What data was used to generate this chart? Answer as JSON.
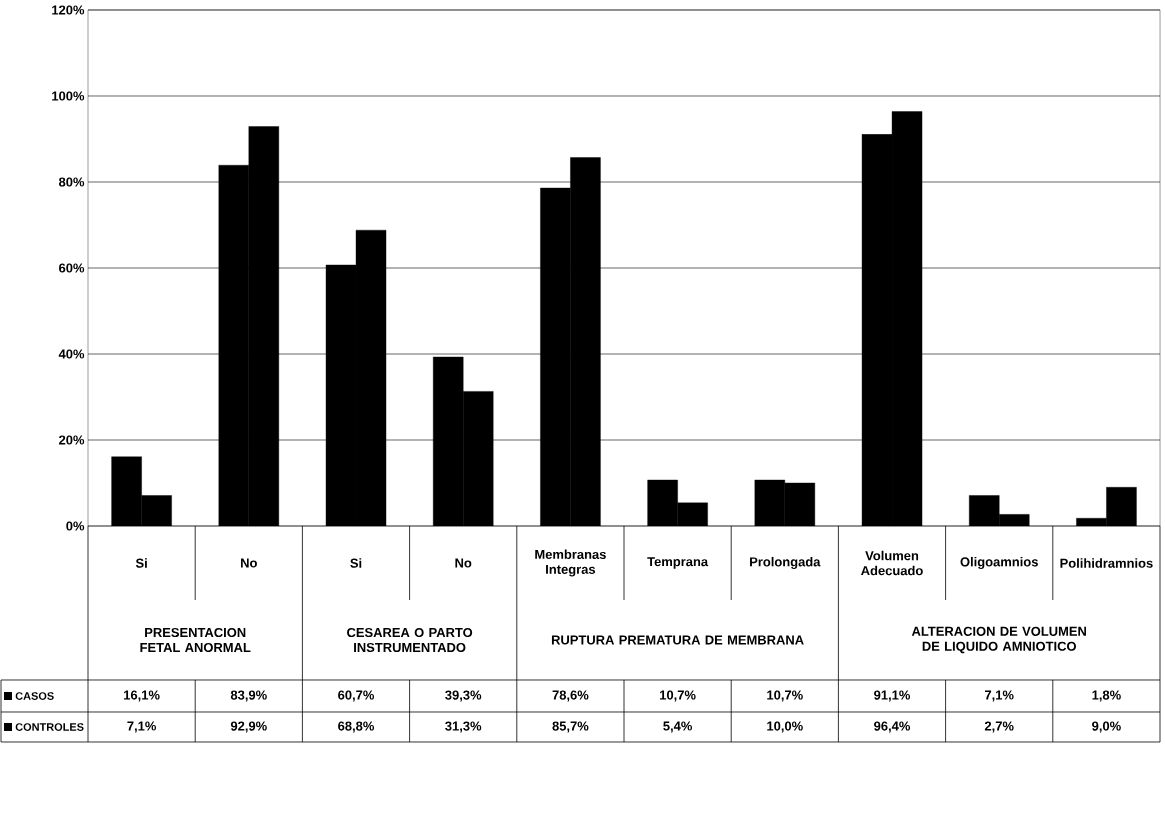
{
  "chart_data": {
    "type": "bar",
    "categories": [
      "Si",
      "No",
      "Si",
      "No",
      "Membranas Integras",
      "Temprana",
      "Prolongada",
      "Volumen Adecuado",
      "Oligoamnios",
      "Polihidramnios"
    ],
    "series": [
      {
        "name": "CASOS",
        "color": "#000000",
        "values": [
          16.1,
          83.9,
          60.7,
          39.3,
          78.6,
          10.7,
          10.7,
          91.1,
          7.1,
          1.8
        ],
        "value_labels": [
          "16,1%",
          "83,9%",
          "60,7%",
          "39,3%",
          "78,6%",
          "10,7%",
          "10,7%",
          "91,1%",
          "7,1%",
          "1,8%"
        ]
      },
      {
        "name": "CONTROLES",
        "color": "#000000",
        "values": [
          7.1,
          92.9,
          68.8,
          31.3,
          85.7,
          5.4,
          10.0,
          96.4,
          2.7,
          9.0
        ],
        "value_labels": [
          "7,1%",
          "92,9%",
          "68,8%",
          "31,3%",
          "85,7%",
          "5,4%",
          "10,0%",
          "96,4%",
          "2,7%",
          "9,0%"
        ]
      }
    ],
    "annotations": [
      "PRESENTACION FETAL ANORMAL",
      "CESAREA O PARTO INSTRUMENTADO",
      "RUPTURA PREMATURA DE MEMBRANA",
      "ALTERACION DE VOLUMEN DE LIQUIDO AMNIOTICO"
    ],
    "ylim": [
      0,
      120
    ],
    "yticks": [
      {
        "value": 0,
        "label": "0%"
      },
      {
        "value": 20,
        "label": "20%"
      },
      {
        "value": 40,
        "label": "40%"
      },
      {
        "value": 60,
        "label": "60%"
      },
      {
        "value": 80,
        "label": "80%"
      },
      {
        "value": 100,
        "label": "100%"
      },
      {
        "value": 120,
        "label": "120%"
      }
    ],
    "grid": "y",
    "legend": "bottom left"
  }
}
